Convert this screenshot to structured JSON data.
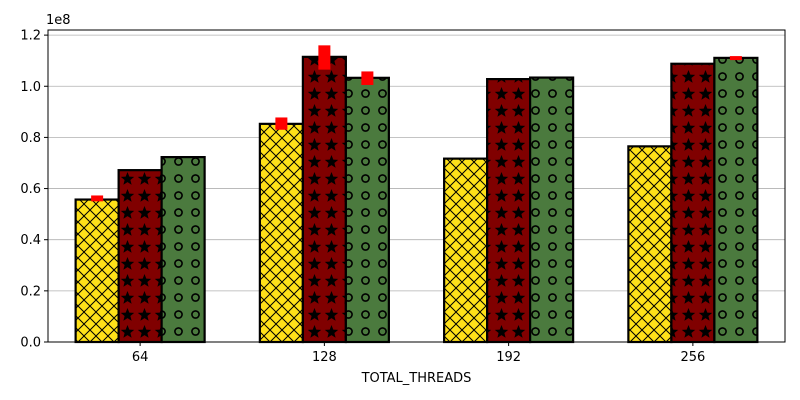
{
  "chart_data": {
    "type": "bar",
    "xlabel": "TOTAL_THREADS",
    "ylabel": "",
    "offset_label": "1e8",
    "categories": [
      "64",
      "128",
      "192",
      "256"
    ],
    "ylim": [
      0,
      122000000
    ],
    "yticks": [
      0,
      20000000,
      40000000,
      60000000,
      80000000,
      100000000,
      120000000
    ],
    "ytick_labels": [
      "0.0",
      "0.2",
      "0.4",
      "0.6",
      "0.8",
      "1.0",
      "1.2"
    ],
    "grid": "y",
    "series": [
      {
        "color": "#ffe119",
        "hatch": "cross",
        "values": [
          55700000,
          85300000,
          71700000,
          76500000
        ],
        "error": [
          [
            55000000,
            57300000
          ],
          [
            83000000,
            87800000
          ],
          null,
          null
        ]
      },
      {
        "color": "#800000",
        "hatch": "star",
        "values": [
          67200000,
          111500000,
          102800000,
          108800000
        ],
        "error": [
          null,
          [
            106500000,
            116000000
          ],
          null,
          null
        ]
      },
      {
        "color": "#4b7a3e",
        "hatch": "circle",
        "values": [
          72300000,
          103300000,
          103400000,
          111100000
        ],
        "error": [
          null,
          [
            100500000,
            105800000
          ],
          null,
          [
            110800000,
            111800000
          ]
        ]
      }
    ],
    "error_color": "#ff0000"
  }
}
